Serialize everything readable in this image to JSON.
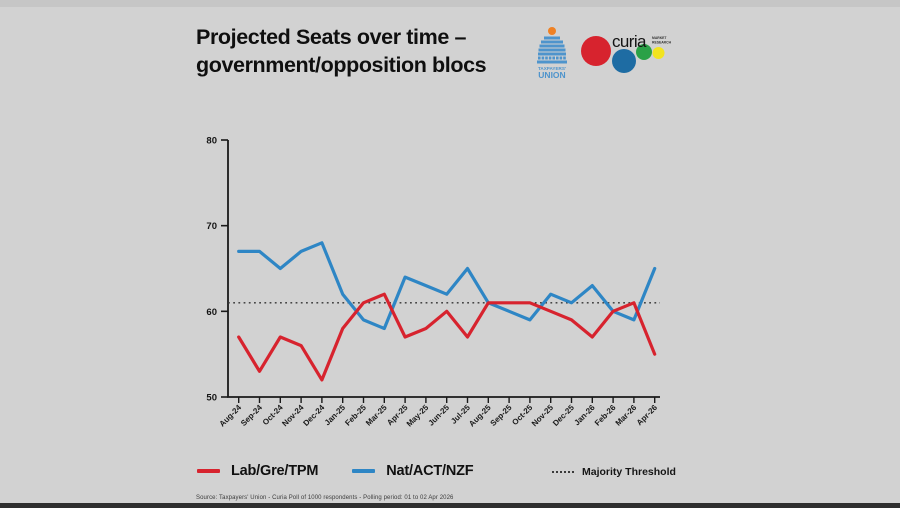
{
  "title": {
    "line1": "Projected Seats over time –",
    "line2": "government/opposition blocs"
  },
  "logos": {
    "tpu": {
      "line1": "TAXPAYERS'",
      "line2": "UNION"
    },
    "curia": {
      "wordmark": "curia",
      "sub1": "MARKET",
      "sub2": "RESEARCH"
    }
  },
  "chart_data": {
    "type": "line",
    "title": "Projected Seats over time – government/opposition blocs",
    "x": [
      "Aug-24",
      "Sep-24",
      "Oct-24",
      "Nov-24",
      "Dec-24",
      "Jan-25",
      "Feb-25",
      "Mar-25",
      "Apr-25",
      "May-25",
      "Jun-25",
      "Jul-25",
      "Aug-25",
      "Sep-25",
      "Oct-25",
      "Nov-25",
      "Dec-25",
      "Jan-26",
      "Feb-26",
      "Mar-26",
      "Apr-26"
    ],
    "series": [
      {
        "name": "Lab/Gre/TPM",
        "color": "#d7232e",
        "values": [
          57,
          53,
          57,
          56,
          52,
          58,
          61,
          62,
          57,
          58,
          60,
          57,
          61,
          61,
          61,
          60,
          59,
          57,
          60,
          61,
          55
        ]
      },
      {
        "name": "Nat/ACT/NZF",
        "color": "#2e86c5",
        "values": [
          67,
          67,
          65,
          67,
          68,
          62,
          59,
          58,
          64,
          63,
          62,
          65,
          61,
          60,
          59,
          62,
          61,
          63,
          60,
          59,
          65
        ]
      }
    ],
    "threshold": {
      "label": "Majority Threshold",
      "value": 61
    },
    "ylim": [
      50,
      80
    ],
    "yticks": [
      50,
      60,
      70,
      80
    ],
    "xlabel": "",
    "ylabel": "",
    "grid": false,
    "legend_position": "bottom"
  },
  "footer": {
    "source": "Source: Taxpayers' Union - Curia Poll of 1000 respondents - Polling period: 01 to 02 Apr 2026"
  },
  "colors": {
    "background": "#d2d2d2",
    "axis": "#1a1a1a",
    "threshold_line": "#333333",
    "red": "#d7232e",
    "blue": "#2e86c5"
  }
}
